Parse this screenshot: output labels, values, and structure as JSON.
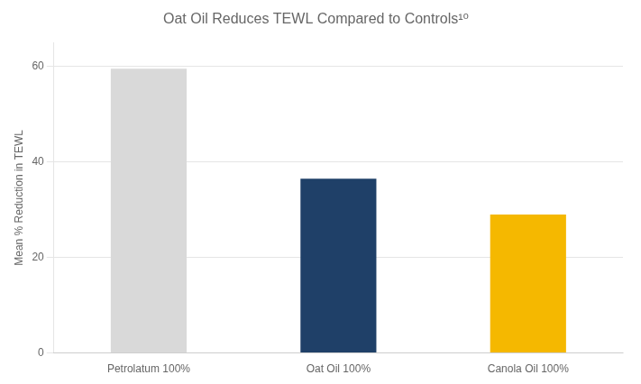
{
  "chart_data": {
    "type": "bar",
    "title": "Oat Oil Reduces TEWL Compared to Controls¹⁰",
    "ylabel": "Mean % Reduction in TEWL",
    "categories": [
      "Petrolatum 100%",
      "Oat Oil 100%",
      "Canola Oil 100%"
    ],
    "values": [
      59.5,
      36.5,
      29.0
    ],
    "colors": [
      "#d9d9d9",
      "#1f4068",
      "#f5b800"
    ],
    "ylim": [
      0,
      65
    ],
    "yticks": [
      0,
      20,
      40,
      60
    ],
    "grid": true
  }
}
